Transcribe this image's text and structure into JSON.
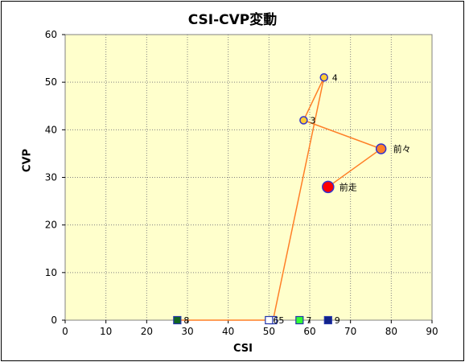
{
  "chart_data": {
    "type": "scatter",
    "title": "CSI-CVP変動",
    "xlabel": "CSI",
    "ylabel": "CVP",
    "xlim": [
      0,
      90
    ],
    "ylim": [
      0,
      60
    ],
    "xticks": [
      0,
      10,
      20,
      30,
      40,
      50,
      60,
      70,
      80,
      90
    ],
    "yticks": [
      0,
      10,
      20,
      30,
      40,
      50,
      60
    ],
    "grid": true,
    "colors": {
      "plot_bg": "#ffffcc",
      "grid": "#808080",
      "line": "#ff7f27",
      "circle_fill": "#ffcc33",
      "circle_stroke": "#3333cc",
      "prev2_fill": "#ff7f27",
      "prev1_fill": "#ff0000"
    },
    "path_order": [
      "前走",
      "前々",
      "3",
      "4",
      "5",
      "8"
    ],
    "points": [
      {
        "label": "前走",
        "x": 64.5,
        "y": 28,
        "marker": "circle-large",
        "fill": "#ff0000"
      },
      {
        "label": "前々",
        "x": 77.5,
        "y": 36,
        "marker": "circle-medium",
        "fill": "#ff7f27"
      },
      {
        "label": "3",
        "x": 58.5,
        "y": 42,
        "marker": "circle",
        "fill": "#ffcc33"
      },
      {
        "label": "4",
        "x": 63.5,
        "y": 51,
        "marker": "circle",
        "fill": "#ffcc33"
      },
      {
        "label": "5",
        "x": 51,
        "y": 0,
        "marker": "square",
        "fill": "#ffffff"
      },
      {
        "label": "6",
        "x": 50,
        "y": 0,
        "marker": "square",
        "fill": "#ffffff"
      },
      {
        "label": "7",
        "x": 57.5,
        "y": 0,
        "marker": "square",
        "fill": "#33ff33"
      },
      {
        "label": "8",
        "x": 27.5,
        "y": 0,
        "marker": "square",
        "fill": "#116622"
      },
      {
        "label": "9",
        "x": 64.5,
        "y": 0,
        "marker": "square",
        "fill": "#112288"
      }
    ]
  }
}
